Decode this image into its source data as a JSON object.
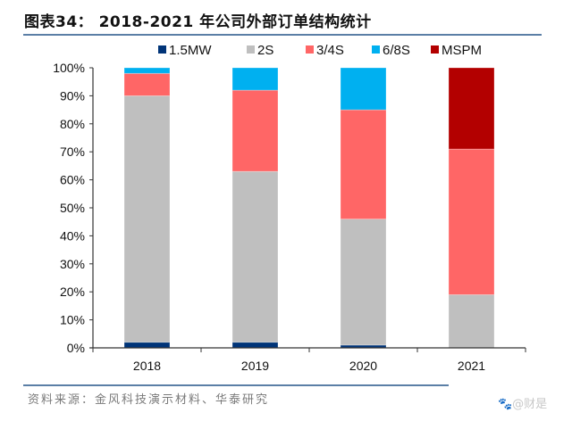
{
  "title": "图表34： 2018-2021 年公司外部订单结构统计",
  "source": "资料来源：金风科技演示材料、华泰研究",
  "watermark": "🐾@财是",
  "chart_data": {
    "type": "bar",
    "stacked": true,
    "title": "2018-2021 年公司外部订单结构统计",
    "xlabel": "",
    "ylabel": "",
    "categories": [
      "2018",
      "2019",
      "2020",
      "2021"
    ],
    "ylim": [
      0,
      100
    ],
    "yticks": [
      0,
      10,
      20,
      30,
      40,
      50,
      60,
      70,
      80,
      90,
      100
    ],
    "ytick_labels": [
      "0%",
      "10%",
      "20%",
      "30%",
      "40%",
      "50%",
      "60%",
      "70%",
      "80%",
      "90%",
      "100%"
    ],
    "grid": false,
    "legend_position": "top",
    "series": [
      {
        "name": "1.5MW",
        "color": "#003478",
        "values": [
          2,
          2,
          1,
          0
        ]
      },
      {
        "name": "2S",
        "color": "#bfbfbf",
        "values": [
          88,
          61,
          45,
          19
        ]
      },
      {
        "name": "3/4S",
        "color": "#ff6666",
        "values": [
          8,
          29,
          39,
          52
        ]
      },
      {
        "name": "6/8S",
        "color": "#00b0f0",
        "values": [
          2,
          8,
          15,
          0
        ]
      },
      {
        "name": "MSPM",
        "color": "#b30000",
        "values": [
          0,
          0,
          0,
          29
        ]
      }
    ]
  }
}
